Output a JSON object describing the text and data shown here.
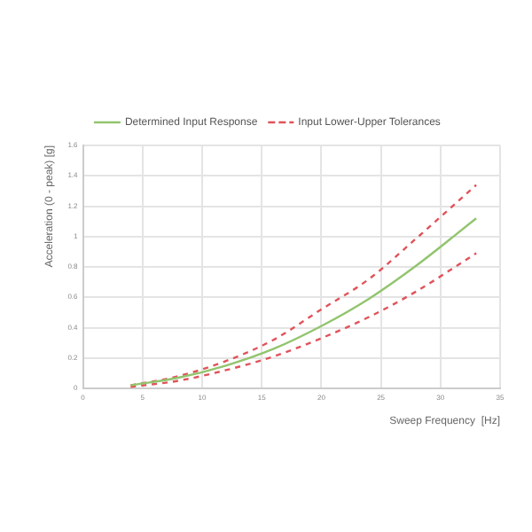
{
  "chart_data": {
    "type": "line",
    "xlabel": "Sweep Frequency  [Hz]",
    "ylabel": "Acceleration (0 - peak) [g]",
    "xlim": [
      0,
      35
    ],
    "xticks": [
      0,
      5,
      10,
      15,
      20,
      25,
      30,
      35
    ],
    "ylim": [
      0,
      1.6
    ],
    "yticks": [
      0,
      0.2,
      0.4,
      0.6,
      0.8,
      1,
      1.2,
      1.4,
      1.6
    ],
    "grid": true,
    "legend": "top",
    "marker": "none",
    "series": [
      {
        "name": "Determined Input Response",
        "color": "#92c46e",
        "line_style": "solid",
        "x": [
          4,
          8,
          12,
          16,
          20,
          24,
          28,
          33
        ],
        "values": [
          0.02,
          0.07,
          0.15,
          0.26,
          0.41,
          0.59,
          0.81,
          1.12
        ]
      },
      {
        "name": "Input Lower-Upper Tolerances",
        "color": "#e0535a",
        "line_style": "dashed",
        "x": [
          4,
          8,
          12,
          16,
          20,
          24,
          28,
          33
        ],
        "values": [
          0.02,
          0.08,
          0.18,
          0.32,
          0.52,
          0.72,
          0.99,
          1.34
        ]
      },
      {
        "color": "#e0535a",
        "line_style": "dashed",
        "x": [
          4,
          8,
          12,
          16,
          20,
          24,
          28,
          33
        ],
        "values": [
          0.01,
          0.05,
          0.12,
          0.21,
          0.33,
          0.47,
          0.64,
          0.89
        ]
      }
    ]
  }
}
